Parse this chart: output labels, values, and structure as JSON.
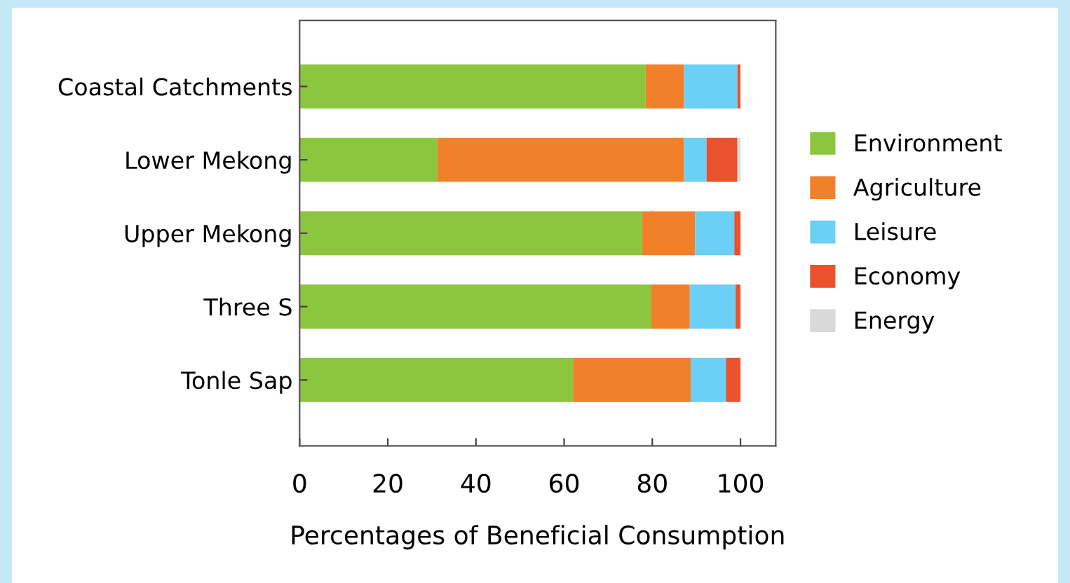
{
  "chart_data": {
    "type": "bar",
    "orientation": "horizontal",
    "stacked": true,
    "categories": [
      "Coastal Catchments",
      "Lower Mekong",
      "Upper Mekong",
      "Three S",
      "Tonle Sap"
    ],
    "series": [
      {
        "name": "Environment",
        "color": "#8cc63f",
        "values": [
          78.5,
          31.3,
          77.7,
          79.8,
          62.0
        ]
      },
      {
        "name": "Agriculture",
        "color": "#f2802b",
        "values": [
          8.7,
          55.9,
          12.0,
          8.7,
          26.7
        ]
      },
      {
        "name": "Leisure",
        "color": "#6bcff6",
        "values": [
          12.1,
          5.1,
          8.9,
          10.4,
          8.0
        ]
      },
      {
        "name": "Economy",
        "color": "#e9522c",
        "values": [
          0.7,
          7.0,
          1.4,
          1.1,
          3.3
        ]
      },
      {
        "name": "Energy",
        "color": "#d9d9d9",
        "values": [
          0,
          0.7,
          0,
          0,
          0
        ]
      }
    ],
    "xlabel": "Percentages of Beneficial Consumption",
    "xlim": [
      0,
      108
    ],
    "xticks": [
      0,
      20,
      40,
      60,
      80,
      100
    ],
    "grid": false,
    "legend": "right"
  }
}
